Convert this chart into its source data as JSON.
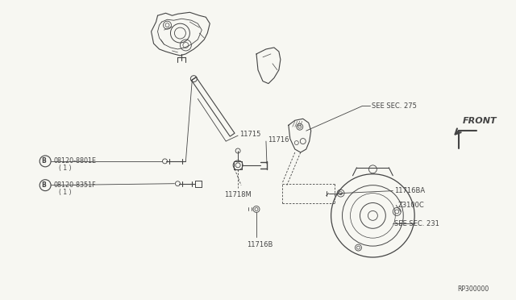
{
  "bg_color": "#f7f7f2",
  "line_color": "#444444",
  "text_color": "#444444",
  "part_number_bottom_right": "RP300000",
  "labels": {
    "see_sec_275": "SEE SEC. 275",
    "see_sec_231": "SEE SEC. 231",
    "front": "FRONT",
    "p11715": "11715",
    "p11716": "11716",
    "p11716BA": "11716BA",
    "p11716B": "11716B",
    "p11718M": "11718M",
    "pZ3100C": "Z3100C",
    "bolt_A_num": "08120-8801E",
    "bolt_A_sub": "( 1 )",
    "bolt_B_num": "08120-8351F",
    "bolt_B_sub": "( 1 )"
  },
  "font_size_small": 6.0,
  "font_size_label": 6.5,
  "font_size_bottom": 5.5
}
